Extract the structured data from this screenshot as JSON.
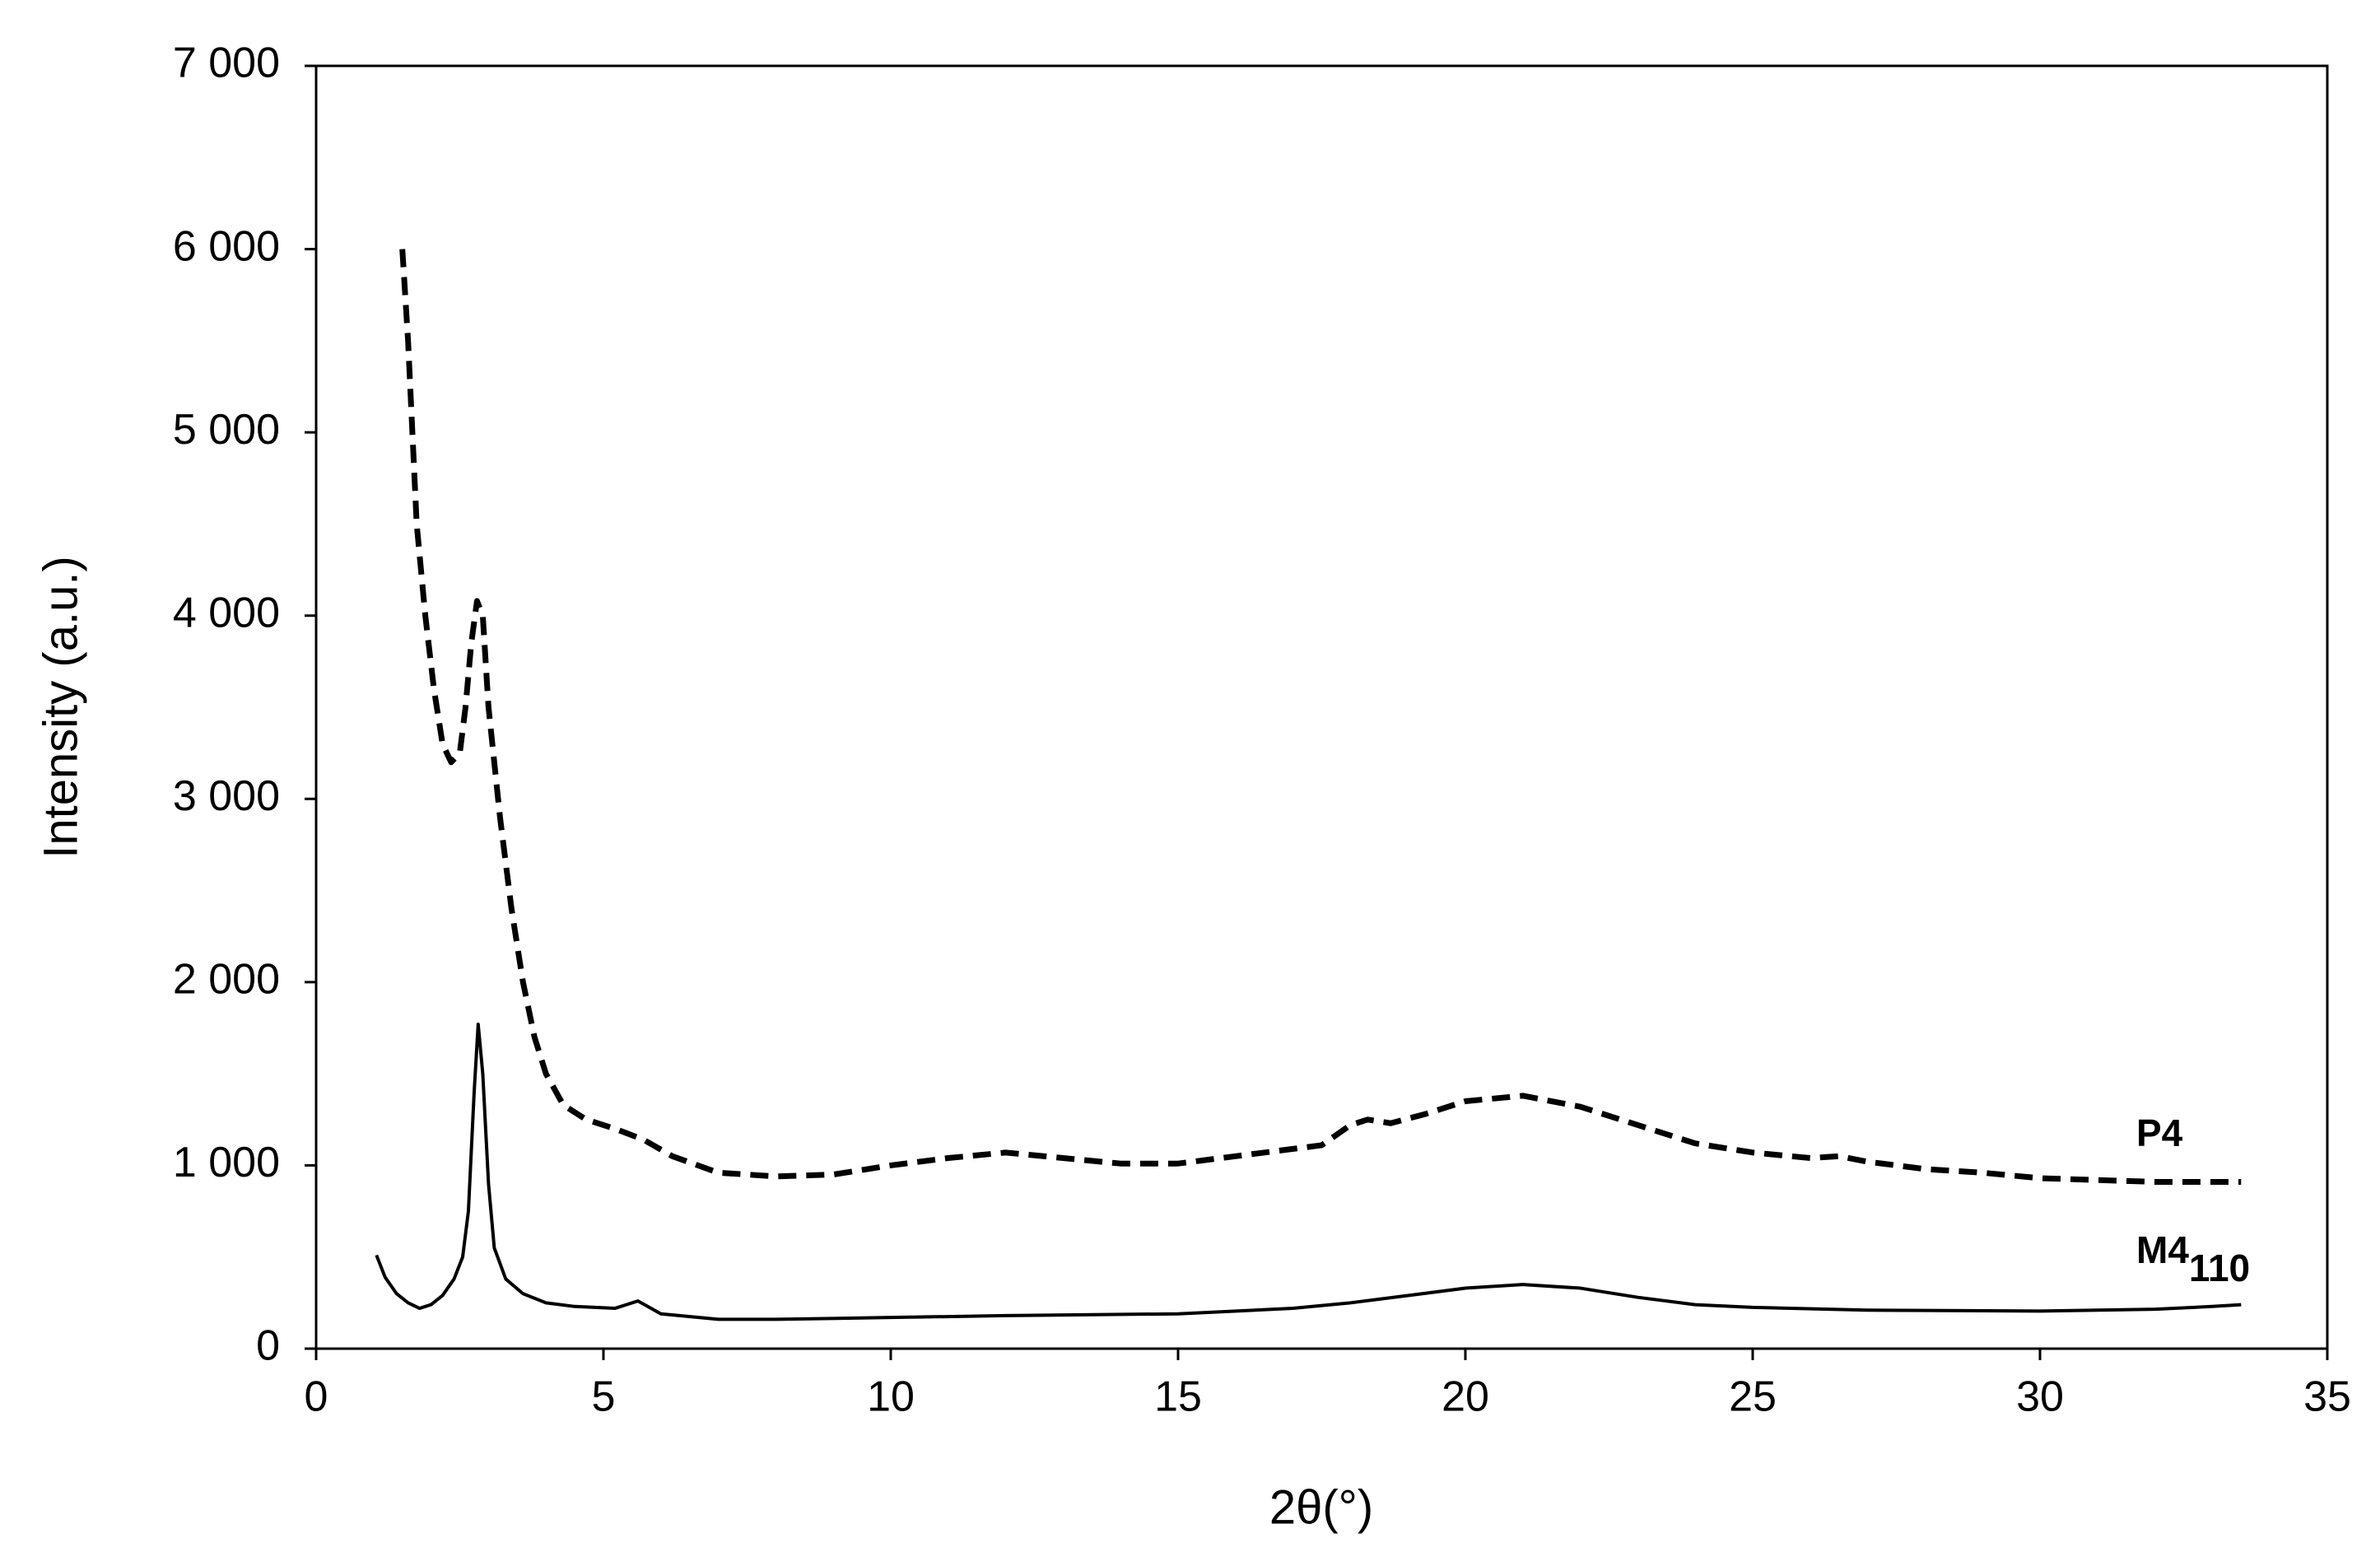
{
  "chart_data": {
    "type": "line",
    "xlabel": "2θ(°)",
    "ylabel": "Intensity (a.u.)",
    "xlim": [
      0,
      35
    ],
    "xticks": [
      0,
      5,
      10,
      15,
      20,
      25,
      30,
      35
    ],
    "ylim": [
      0,
      7000
    ],
    "yticks": [
      0,
      {
        "value": 1000,
        "label": "1 000"
      },
      {
        "value": 2000,
        "label": "2 000"
      },
      {
        "value": 3000,
        "label": "3 000"
      },
      {
        "value": 4000,
        "label": "4 000"
      },
      {
        "value": 5000,
        "label": "5 000"
      },
      {
        "value": 6000,
        "label": "6 000"
      },
      {
        "value": 7000,
        "label": "7 000"
      }
    ],
    "grid": false,
    "series": [
      {
        "name": "P4",
        "color": "#000000",
        "dash": "dashed",
        "x": [
          1.5,
          1.6,
          1.75,
          1.9,
          2.05,
          2.2,
          2.35,
          2.5,
          2.6,
          2.7,
          2.8,
          2.9,
          3.0,
          3.2,
          3.4,
          3.6,
          3.8,
          4.0,
          4.3,
          4.7,
          5.2,
          5.7,
          6.2,
          7,
          8,
          9,
          10,
          11,
          12,
          13,
          14,
          15,
          16,
          17,
          17.5,
          18,
          18.3,
          18.7,
          19.3,
          20,
          21,
          22,
          23,
          24,
          25,
          26,
          26.5,
          27,
          28,
          29,
          30,
          31,
          32,
          33,
          33.5
        ],
        "values": [
          6000,
          5500,
          4500,
          4000,
          3600,
          3300,
          3200,
          3250,
          3500,
          3850,
          4080,
          4000,
          3500,
          2900,
          2400,
          2000,
          1700,
          1500,
          1330,
          1250,
          1200,
          1140,
          1050,
          960,
          940,
          950,
          1000,
          1040,
          1070,
          1040,
          1010,
          1010,
          1050,
          1090,
          1110,
          1220,
          1250,
          1230,
          1280,
          1350,
          1380,
          1320,
          1220,
          1120,
          1070,
          1040,
          1050,
          1020,
          980,
          960,
          930,
          920,
          910,
          910,
          910
        ]
      },
      {
        "name": "M4",
        "subscript": "110",
        "color": "#000000",
        "dash": "solid",
        "x": [
          1.05,
          1.2,
          1.4,
          1.6,
          1.8,
          2.0,
          2.2,
          2.4,
          2.55,
          2.65,
          2.75,
          2.82,
          2.9,
          3.0,
          3.1,
          3.3,
          3.6,
          4,
          4.5,
          5.2,
          5.6,
          6,
          7,
          8,
          10,
          12,
          15,
          17,
          18,
          19,
          20,
          21,
          22,
          23,
          24,
          25,
          27,
          30,
          32,
          33,
          33.5
        ],
        "values": [
          510,
          390,
          300,
          250,
          220,
          240,
          290,
          380,
          500,
          750,
          1400,
          1770,
          1500,
          900,
          550,
          380,
          300,
          250,
          230,
          220,
          260,
          190,
          160,
          160,
          170,
          180,
          190,
          220,
          250,
          290,
          330,
          350,
          330,
          280,
          240,
          225,
          210,
          205,
          215,
          230,
          240
        ]
      }
    ]
  }
}
